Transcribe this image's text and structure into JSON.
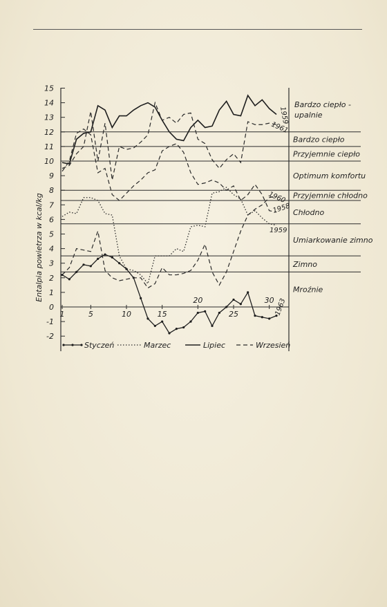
{
  "chart_data": {
    "type": "line",
    "ylabel": "Entalpia powietrza w kcal/kg",
    "xlim": [
      1,
      31
    ],
    "ylim": [
      -3,
      15
    ],
    "x_ticks": [
      1,
      5,
      10,
      15,
      20,
      25,
      30
    ],
    "x_tick_labels": [
      "1",
      "5",
      "10",
      "15",
      "20",
      "25",
      "30"
    ],
    "y_ticks": [
      -2,
      -1,
      0,
      1,
      2,
      3,
      4,
      5,
      6,
      7,
      8,
      9,
      10,
      11,
      12,
      13,
      14,
      15
    ],
    "y_tick_labels": [
      "-2",
      "-1",
      "0",
      "1",
      "2",
      "3",
      "4",
      "5",
      "6",
      "7",
      "8",
      "9",
      "10",
      "11",
      "12",
      "13",
      "14",
      "15"
    ],
    "zones": [
      {
        "label": "Bardzo ciepło -",
        "label2": "upalnie",
        "y_bottom": 12,
        "y_top": 15
      },
      {
        "label": "Bardzo ciepło",
        "label2": "",
        "y_bottom": 11,
        "y_top": 12
      },
      {
        "label": "Przyjemnie ciepło",
        "label2": "",
        "y_bottom": 10,
        "y_top": 11
      },
      {
        "label": "Optimum komfortu",
        "label2": "",
        "y_bottom": 8,
        "y_top": 10
      },
      {
        "label": "Przyjemnie chłodno",
        "label2": "",
        "y_bottom": 7.3,
        "y_top": 8
      },
      {
        "label": "Chłodno",
        "label2": "",
        "y_bottom": 5.7,
        "y_top": 7.3
      },
      {
        "label": "Umiarkowanie zimno",
        "label2": "",
        "y_bottom": 3.5,
        "y_top": 5.7
      },
      {
        "label": "Zimno",
        "label2": "",
        "y_bottom": 2.4,
        "y_top": 3.5
      },
      {
        "label": "Mroźnie",
        "label2": "",
        "y_bottom": -3,
        "y_top": 2.4
      }
    ],
    "series": [
      {
        "name": "Styczeń",
        "year": "1963",
        "style": "marker",
        "x": [
          1,
          2,
          3,
          4,
          5,
          6,
          7,
          8,
          9,
          10,
          11,
          12,
          13,
          14,
          15,
          16,
          17,
          18,
          19,
          20,
          21,
          22,
          23,
          24,
          25,
          26,
          27,
          28,
          29,
          30,
          31
        ],
        "y": [
          2.2,
          1.9,
          2.4,
          2.9,
          2.8,
          3.3,
          3.6,
          3.4,
          3.0,
          2.6,
          2.0,
          0.6,
          -0.8,
          -1.3,
          -1.0,
          -1.8,
          -1.5,
          -1.4,
          -1.0,
          -0.4,
          -0.3,
          -1.3,
          -0.4,
          0.0,
          0.5,
          0.2,
          1.0,
          -0.6,
          -0.7,
          -0.8,
          -0.6
        ]
      },
      {
        "name": "Marzec",
        "year": "1958",
        "style": "dotted",
        "x": [
          1,
          2,
          3,
          4,
          5,
          6,
          7,
          8,
          9,
          10,
          11,
          12,
          13,
          14,
          15,
          16,
          17,
          18,
          19,
          20,
          21,
          22,
          23,
          24,
          25,
          26,
          27,
          28,
          29,
          30,
          31
        ],
        "y": [
          6.2,
          6.5,
          6.4,
          7.5,
          7.5,
          7.3,
          6.4,
          6.3,
          3.5,
          2.6,
          2.5,
          2.2,
          1.6,
          3.5,
          3.5,
          3.5,
          4.0,
          3.8,
          5.5,
          5.6,
          5.5,
          7.8,
          7.9,
          8.2,
          7.7,
          7.4,
          6.3,
          6.6,
          6.1,
          5.7,
          5.6
        ]
      },
      {
        "name": "Lipiec",
        "year": "1959",
        "style": "solid",
        "x": [
          1,
          2,
          3,
          4,
          5,
          6,
          7,
          8,
          9,
          10,
          11,
          12,
          13,
          14,
          15,
          16,
          17,
          18,
          19,
          20,
          21,
          22,
          23,
          24,
          25,
          26,
          27,
          28,
          29,
          30,
          31
        ],
        "y": [
          9.9,
          9.8,
          11.5,
          11.9,
          12.0,
          13.8,
          13.5,
          12.3,
          13.1,
          13.1,
          13.5,
          13.8,
          14.0,
          13.7,
          12.8,
          12.0,
          11.5,
          11.4,
          12.3,
          12.8,
          12.3,
          12.4,
          13.5,
          14.1,
          13.2,
          13.1,
          14.5,
          13.8,
          14.2,
          13.6,
          13.2
        ]
      },
      {
        "name": "Wrzesień",
        "year": "1961",
        "style": "dashed",
        "x": [
          1,
          2,
          3,
          4,
          5,
          6,
          7,
          8,
          9,
          10,
          11,
          12,
          13,
          14,
          15,
          16,
          17,
          18,
          19,
          20,
          21,
          22,
          23,
          24,
          25,
          26,
          27,
          28,
          29,
          30,
          31
        ],
        "y": [
          9.5,
          9.7,
          10.5,
          11.0,
          13.4,
          10.0,
          12.6,
          8.7,
          11.0,
          10.8,
          10.9,
          11.3,
          11.8,
          14.0,
          12.8,
          13.0,
          12.6,
          13.2,
          13.3,
          11.5,
          11.2,
          10.1,
          9.5,
          10.1,
          10.5,
          9.9,
          12.7,
          12.5,
          12.5,
          12.6,
          12.5
        ]
      },
      {
        "name": "Wrzesień",
        "year": "1960",
        "style": "dashed",
        "x": [
          1,
          2,
          3,
          4,
          5,
          6,
          7,
          8,
          9,
          10,
          11,
          12,
          13,
          14,
          15,
          16,
          17,
          18,
          19,
          20,
          21,
          22,
          23,
          24,
          25,
          26,
          27,
          28,
          29,
          30,
          31
        ],
        "y": [
          9.3,
          10.0,
          11.9,
          12.2,
          11.8,
          9.2,
          9.5,
          7.7,
          7.3,
          7.8,
          8.3,
          8.7,
          9.2,
          9.4,
          10.7,
          11.0,
          11.2,
          10.6,
          9.2,
          8.4,
          8.5,
          8.7,
          8.5,
          8.0,
          8.3,
          7.3,
          7.7,
          8.4,
          7.7,
          6.6,
          6.5
        ]
      },
      {
        "name": "Marzec",
        "year": "1959",
        "style": "dashed",
        "x": [
          1,
          2,
          3,
          4,
          5,
          6,
          7,
          8,
          9,
          10,
          11,
          12,
          13,
          14,
          15,
          16,
          17,
          18,
          19,
          20,
          21,
          22,
          23,
          24,
          25,
          26,
          27,
          28,
          29,
          30,
          31
        ],
        "y": [
          2.2,
          2.7,
          4.0,
          3.9,
          3.8,
          5.2,
          2.5,
          2.0,
          1.8,
          1.9,
          2.0,
          2.0,
          1.3,
          1.6,
          2.7,
          2.2,
          2.2,
          2.3,
          2.5,
          3.2,
          4.3,
          2.4,
          1.5,
          2.4,
          3.8,
          5.2,
          6.3,
          6.7,
          7.0,
          7.5,
          7.6
        ]
      }
    ],
    "legend": [
      {
        "label": "Styczeń",
        "style": "marker"
      },
      {
        "label": "Marzec",
        "style": "dotted"
      },
      {
        "label": "Lipiec",
        "style": "solid"
      },
      {
        "label": "Wrzesień",
        "style": "dashed"
      }
    ],
    "grid": false,
    "legend_position": "bottom"
  }
}
